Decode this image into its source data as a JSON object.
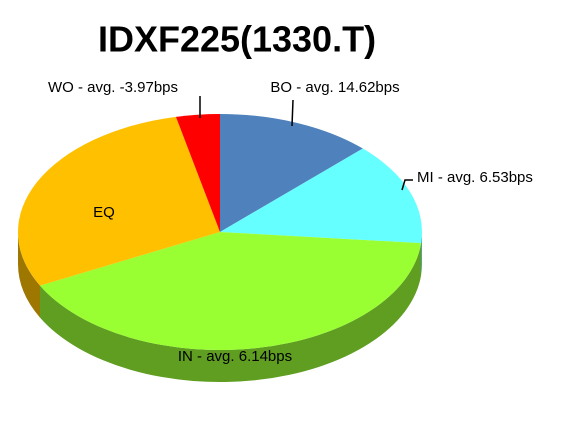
{
  "chart_data": {
    "type": "pie",
    "title": "IDXF225(1330.T)",
    "categories": [
      "BO - avg. 14.62bps",
      "MI - avg. 6.53bps",
      "IN - avg. 6.14bps",
      "EQ",
      "WO - avg. -3.97bps"
    ],
    "values": [
      12.5,
      14,
      41,
      29,
      3.5
    ],
    "colors": [
      "#4f81bd",
      "#66ffff",
      "#99ff33",
      "#ffc000",
      "#ff0000"
    ]
  }
}
